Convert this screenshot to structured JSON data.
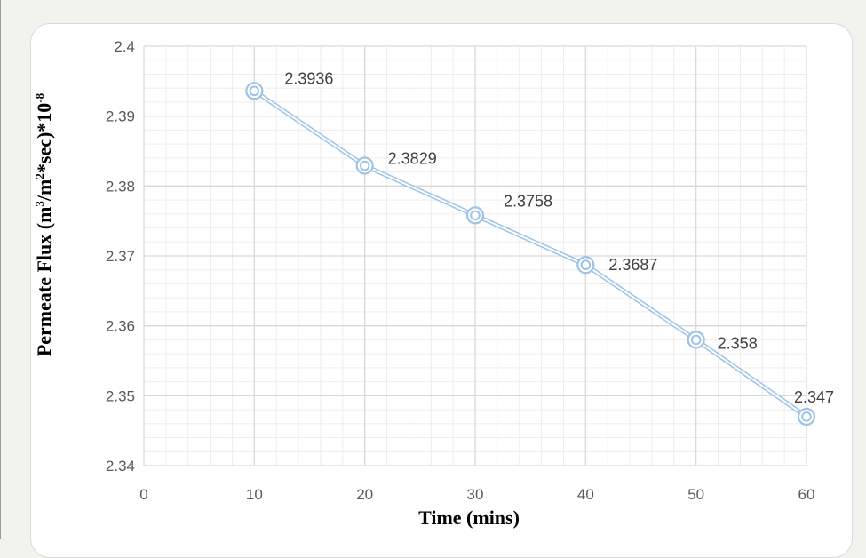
{
  "chart_data": {
    "type": "line",
    "x": [
      10,
      20,
      30,
      40,
      50,
      60
    ],
    "series": [
      {
        "values": [
          2.3936,
          2.3829,
          2.3758,
          2.3687,
          2.358,
          2.347
        ]
      }
    ],
    "data_labels": [
      "2.3936",
      "2.3829",
      "2.3758",
      "2.3687",
      "2.358",
      "2.347"
    ],
    "xlabel": "Time (mins)",
    "ylabel_parts": {
      "main": "Permeate Flux (m",
      "sup1": "3",
      "mid": "/m",
      "sup2": "2",
      "tail": "*sec)*10",
      "sup3": "-8"
    },
    "xlim": [
      0,
      60
    ],
    "ylim": [
      2.34,
      2.4
    ],
    "x_ticks": [
      "0",
      "10",
      "20",
      "30",
      "40",
      "50",
      "60"
    ],
    "y_ticks": [
      "2.34",
      "2.35",
      "2.36",
      "2.37",
      "2.38",
      "2.39",
      "2.4"
    ],
    "grid": true,
    "colors": {
      "line": "#9dc3e6",
      "marker": "#9dc3e6",
      "grid": "#d9d9d9"
    }
  }
}
